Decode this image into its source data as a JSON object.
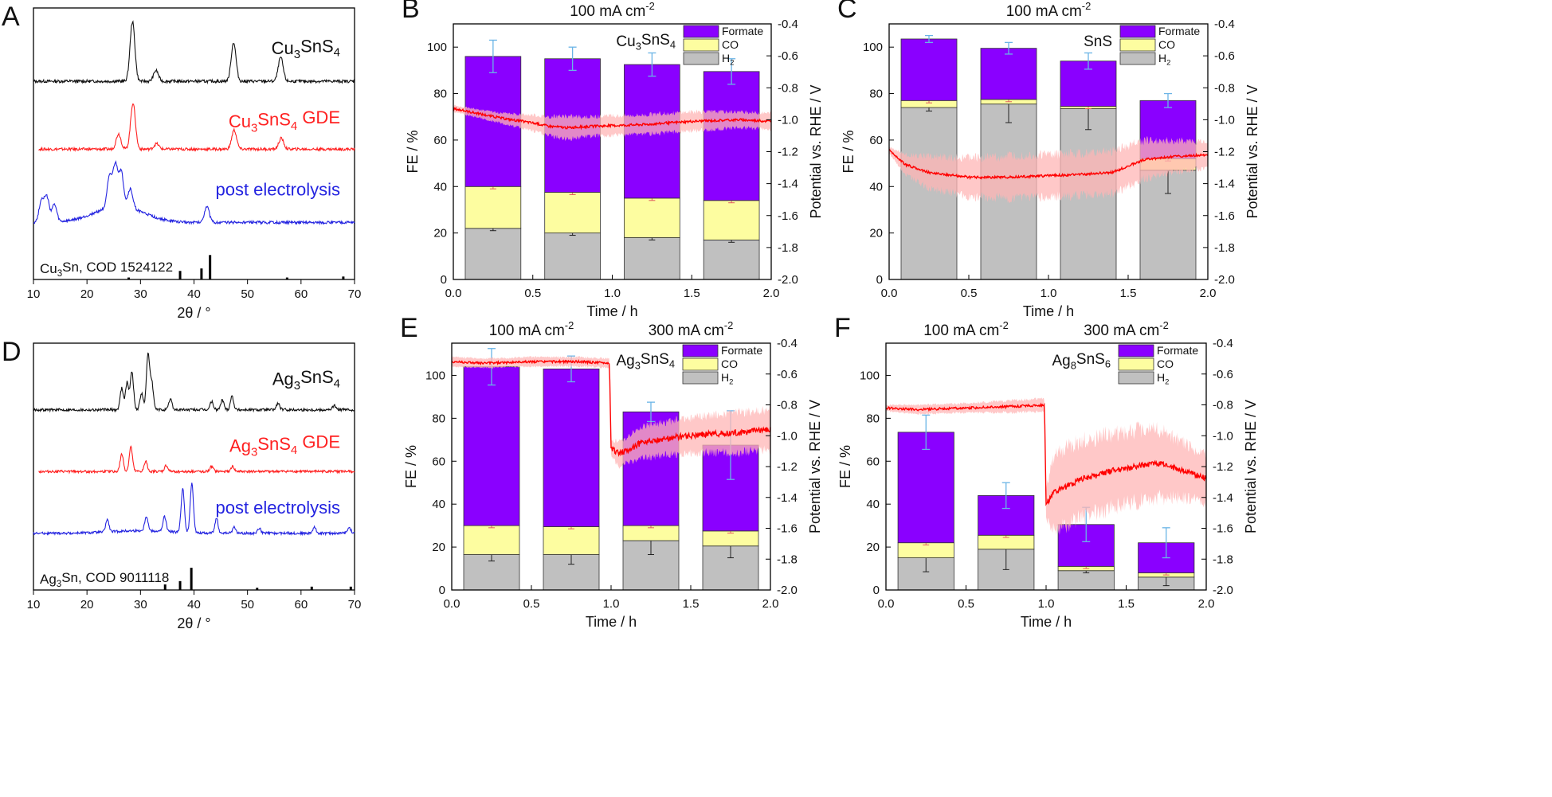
{
  "colors": {
    "formate": "#8a00ff",
    "co": "#fdfda0",
    "h2": "#c0c0c0",
    "potential": "#ff0000",
    "potential_band": "#ffb6b6",
    "fe_error": "#6ab4e6",
    "xrd_black": "#111111",
    "xrd_red": "#ff2020",
    "xrd_blue": "#2424e0"
  },
  "chart_data": [
    {
      "panel": "A",
      "type": "line",
      "xlabel": "2θ / °",
      "xlim": [
        10,
        70
      ],
      "x_ticks": [
        10,
        20,
        30,
        40,
        50,
        60,
        70
      ],
      "series": [
        {
          "label_parts": [
            [
              "Cu",
              false
            ],
            [
              "3",
              true
            ],
            [
              "SnS",
              false
            ],
            [
              "4",
              true
            ]
          ],
          "color": "#111111",
          "peaks": [
            [
              28.5,
              1.0
            ],
            [
              32.9,
              0.18
            ],
            [
              47.4,
              0.65
            ],
            [
              56.2,
              0.4
            ]
          ]
        },
        {
          "label_parts": [
            [
              "Cu",
              false
            ],
            [
              "3",
              true
            ],
            [
              "SnS",
              false
            ],
            [
              "4",
              true
            ],
            [
              " GDE",
              false
            ]
          ],
          "color": "#ff2020",
          "peaks": [
            [
              25.9,
              0.28
            ],
            [
              28.6,
              0.85
            ],
            [
              33.0,
              0.1
            ],
            [
              47.5,
              0.35
            ],
            [
              56.3,
              0.2
            ]
          ]
        },
        {
          "label_parts": [
            [
              "post electrolysis",
              false
            ]
          ],
          "color": "#2424e0",
          "peaks": [
            [
              11.5,
              0.4
            ],
            [
              12.5,
              0.45
            ],
            [
              13.9,
              0.32
            ],
            [
              24.2,
              0.55
            ],
            [
              25.3,
              0.75
            ],
            [
              26.4,
              0.62
            ],
            [
              28.1,
              0.35
            ],
            [
              42.4,
              0.3
            ]
          ]
        }
      ],
      "reference": {
        "label": "Cu3Sn, COD 1524122",
        "label_parts": [
          [
            "Cu",
            false
          ],
          [
            "3",
            true
          ],
          [
            "Sn, COD 1524122",
            false
          ]
        ],
        "sticks": [
          [
            27.8,
            0.08
          ],
          [
            37.4,
            0.35
          ],
          [
            41.4,
            0.45
          ],
          [
            43.0,
            1.0
          ],
          [
            57.4,
            0.08
          ],
          [
            67.9,
            0.12
          ]
        ]
      }
    },
    {
      "panel": "B",
      "type": "bar",
      "title_parts": [
        [
          "100 mA cm",
          false
        ],
        [
          "-2",
          true
        ]
      ],
      "sample_parts": [
        [
          "Cu",
          false
        ],
        [
          "3",
          true
        ],
        [
          "SnS",
          false
        ],
        [
          "4",
          true
        ]
      ],
      "xlabel": "Time / h",
      "ylabel": "FE / %",
      "ylabel2": "Potential vs. RHE / V",
      "xlim": [
        0,
        2
      ],
      "ylim": [
        0,
        110
      ],
      "y2lim": [
        -2.0,
        -0.4
      ],
      "x_ticks": [
        0.0,
        0.5,
        1.0,
        1.5,
        2.0
      ],
      "y_ticks": [
        0,
        20,
        40,
        60,
        80,
        100
      ],
      "y2_ticks": [
        -0.4,
        -0.6,
        -0.8,
        -1.0,
        -1.2,
        -1.4,
        -1.6,
        -1.8,
        -2.0
      ],
      "categories": [
        0.25,
        0.75,
        1.25,
        1.75
      ],
      "series": [
        {
          "name_parts": [
            [
              "H",
              false
            ],
            [
              "2",
              true
            ]
          ],
          "color": "#c0c0c0",
          "values": [
            22,
            20,
            18,
            17
          ]
        },
        {
          "name_parts": [
            [
              "CO",
              false
            ]
          ],
          "color": "#fdfda0",
          "values": [
            18,
            17.5,
            17,
            17
          ]
        },
        {
          "name_parts": [
            [
              "Formate",
              false
            ]
          ],
          "color": "#8a00ff",
          "values": [
            56,
            57.5,
            57.5,
            55.5
          ]
        }
      ],
      "total_error": [
        7,
        5,
        5,
        5.5
      ],
      "potential": {
        "points": [
          [
            0,
            -0.93
          ],
          [
            0.3,
            -0.99
          ],
          [
            0.5,
            -1.02
          ],
          [
            0.6,
            -1.04
          ],
          [
            0.72,
            -1.05
          ],
          [
            0.9,
            -1.04
          ],
          [
            1.2,
            -1.03
          ],
          [
            1.5,
            -1.01
          ],
          [
            1.8,
            -1.0
          ],
          [
            2.0,
            -1.01
          ]
        ],
        "band": [
          0.02,
          0.03,
          0.05,
          0.06,
          0.07,
          0.06,
          0.06,
          0.06,
          0.05,
          0.05
        ]
      }
    },
    {
      "panel": "C",
      "type": "bar",
      "title_parts": [
        [
          "100 mA cm",
          false
        ],
        [
          "-2",
          true
        ]
      ],
      "sample_parts": [
        [
          "SnS",
          false
        ]
      ],
      "xlabel": "Time / h",
      "ylabel": "FE / %",
      "ylabel2": "Potential vs. RHE / V",
      "xlim": [
        0,
        2
      ],
      "ylim": [
        0,
        110
      ],
      "y2lim": [
        -2.0,
        -0.4
      ],
      "x_ticks": [
        0.0,
        0.5,
        1.0,
        1.5,
        2.0
      ],
      "y_ticks": [
        0,
        20,
        40,
        60,
        80,
        100
      ],
      "y2_ticks": [
        -0.4,
        -0.6,
        -0.8,
        -1.0,
        -1.2,
        -1.4,
        -1.6,
        -1.8,
        -2.0
      ],
      "categories": [
        0.25,
        0.75,
        1.25,
        1.75
      ],
      "series": [
        {
          "name_parts": [
            [
              "H",
              false
            ],
            [
              "2",
              true
            ]
          ],
          "color": "#c0c0c0",
          "values": [
            74,
            75.5,
            73.5,
            47
          ]
        },
        {
          "name_parts": [
            [
              "CO",
              false
            ]
          ],
          "color": "#fdfda0",
          "values": [
            3,
            2,
            1,
            5
          ]
        },
        {
          "name_parts": [
            [
              "Formate",
              false
            ]
          ],
          "color": "#8a00ff",
          "values": [
            26.5,
            22,
            19.5,
            25
          ]
        }
      ],
      "total_error": [
        1.5,
        2.5,
        3.5,
        3
      ],
      "h2_error": [
        1.5,
        8,
        9,
        10
      ],
      "potential": {
        "points": [
          [
            0,
            -1.19
          ],
          [
            0.1,
            -1.28
          ],
          [
            0.25,
            -1.33
          ],
          [
            0.5,
            -1.36
          ],
          [
            0.75,
            -1.36
          ],
          [
            1.0,
            -1.35
          ],
          [
            1.25,
            -1.34
          ],
          [
            1.4,
            -1.33
          ],
          [
            1.5,
            -1.29
          ],
          [
            1.6,
            -1.25
          ],
          [
            1.8,
            -1.23
          ],
          [
            2.0,
            -1.22
          ]
        ],
        "band": [
          0.02,
          0.06,
          0.1,
          0.12,
          0.13,
          0.13,
          0.13,
          0.13,
          0.13,
          0.12,
          0.1,
          0.08
        ]
      }
    },
    {
      "panel": "D",
      "type": "line",
      "xlabel": "2θ / °",
      "xlim": [
        10,
        70
      ],
      "x_ticks": [
        10,
        20,
        30,
        40,
        50,
        60,
        70
      ],
      "series": [
        {
          "label_parts": [
            [
              "Ag",
              false
            ],
            [
              "3",
              true
            ],
            [
              "SnS",
              false
            ],
            [
              "4",
              true
            ]
          ],
          "color": "#111111",
          "peaks": [
            [
              26.5,
              0.4
            ],
            [
              27.5,
              0.5
            ],
            [
              28.4,
              0.7
            ],
            [
              30.2,
              0.3
            ],
            [
              31.4,
              1.0
            ],
            [
              32.1,
              0.5
            ],
            [
              35.6,
              0.2
            ],
            [
              43.3,
              0.15
            ],
            [
              45.3,
              0.18
            ],
            [
              47.1,
              0.25
            ],
            [
              55.7,
              0.12
            ],
            [
              66.2,
              0.08
            ]
          ]
        },
        {
          "label_parts": [
            [
              "Ag",
              false
            ],
            [
              "3",
              true
            ],
            [
              "SnS",
              false
            ],
            [
              "4",
              true
            ],
            [
              " GDE",
              false
            ]
          ],
          "color": "#ff2020",
          "peaks": [
            [
              26.5,
              0.35
            ],
            [
              28.2,
              0.5
            ],
            [
              31.0,
              0.2
            ],
            [
              34.8,
              0.12
            ],
            [
              43.3,
              0.1
            ],
            [
              47.2,
              0.1
            ]
          ]
        },
        {
          "label_parts": [
            [
              "post electrolysis",
              false
            ]
          ],
          "color": "#2424e0",
          "peaks": [
            [
              23.8,
              0.25
            ],
            [
              31.1,
              0.3
            ],
            [
              34.5,
              0.3
            ],
            [
              37.9,
              0.9
            ],
            [
              39.6,
              1.0
            ],
            [
              44.2,
              0.3
            ],
            [
              47.5,
              0.12
            ],
            [
              52.2,
              0.1
            ],
            [
              62.5,
              0.12
            ],
            [
              69.0,
              0.12
            ]
          ]
        }
      ],
      "reference": {
        "label": "Ag3Sn, COD 9011118",
        "label_parts": [
          [
            "Ag",
            false
          ],
          [
            "3",
            true
          ],
          [
            "Sn, COD 9011118",
            false
          ]
        ],
        "sticks": [
          [
            34.6,
            0.25
          ],
          [
            37.4,
            0.4
          ],
          [
            39.5,
            1.0
          ],
          [
            51.8,
            0.1
          ],
          [
            62.0,
            0.15
          ],
          [
            69.3,
            0.15
          ]
        ]
      }
    },
    {
      "panel": "E",
      "type": "bar",
      "title_parts": [
        [
          "100 mA cm",
          false
        ],
        [
          "-2",
          true
        ]
      ],
      "title2_parts": [
        [
          "300 mA cm",
          false
        ],
        [
          "-2",
          true
        ]
      ],
      "sample_parts": [
        [
          "Ag",
          false
        ],
        [
          "3",
          true
        ],
        [
          "SnS",
          false
        ],
        [
          "4",
          true
        ]
      ],
      "xlabel": "Time / h",
      "ylabel": "FE / %",
      "ylabel2": "Potential vs. RHE / V",
      "xlim": [
        0,
        2
      ],
      "ylim": [
        0,
        115
      ],
      "y2lim": [
        -2.0,
        -0.4
      ],
      "x_ticks": [
        0.0,
        0.5,
        1.0,
        1.5,
        2.0
      ],
      "y_ticks": [
        0,
        20,
        40,
        60,
        80,
        100
      ],
      "y2_ticks": [
        -0.4,
        -0.6,
        -0.8,
        -1.0,
        -1.2,
        -1.4,
        -1.6,
        -1.8,
        -2.0
      ],
      "categories": [
        0.25,
        0.75,
        1.25,
        1.75
      ],
      "series": [
        {
          "name_parts": [
            [
              "H",
              false
            ],
            [
              "2",
              true
            ]
          ],
          "color": "#c0c0c0",
          "values": [
            16.5,
            16.5,
            23,
            20.5
          ]
        },
        {
          "name_parts": [
            [
              "CO",
              false
            ]
          ],
          "color": "#fdfda0",
          "values": [
            13.5,
            13,
            7,
            7
          ]
        },
        {
          "name_parts": [
            [
              "Formate",
              false
            ]
          ],
          "color": "#8a00ff",
          "values": [
            74,
            73.5,
            53,
            40
          ]
        }
      ],
      "total_error": [
        8.5,
        6,
        4.5,
        16
      ],
      "h2_error": [
        3,
        4.5,
        6.5,
        5.5
      ],
      "potential": {
        "points": [
          [
            0,
            -0.52
          ],
          [
            0.2,
            -0.53
          ],
          [
            0.5,
            -0.52
          ],
          [
            0.8,
            -0.52
          ],
          [
            0.99,
            -0.53
          ],
          [
            1.0,
            -1.08
          ],
          [
            1.05,
            -1.12
          ],
          [
            1.2,
            -1.04
          ],
          [
            1.4,
            -1.01
          ],
          [
            1.6,
            -0.99
          ],
          [
            1.8,
            -0.98
          ],
          [
            2.0,
            -0.96
          ]
        ],
        "band": [
          0.03,
          0.03,
          0.03,
          0.03,
          0.03,
          0.05,
          0.08,
          0.1,
          0.11,
          0.12,
          0.13,
          0.13
        ]
      }
    },
    {
      "panel": "F",
      "type": "bar",
      "title_parts": [
        [
          "100 mA cm",
          false
        ],
        [
          "-2",
          true
        ]
      ],
      "title2_parts": [
        [
          "300 mA cm",
          false
        ],
        [
          "-2",
          true
        ]
      ],
      "sample_parts": [
        [
          "Ag",
          false
        ],
        [
          "8",
          true
        ],
        [
          "SnS",
          false
        ],
        [
          "6",
          true
        ]
      ],
      "xlabel": "Time / h",
      "ylabel": "FE / %",
      "ylabel2": "Potential vs. RHE / V",
      "xlim": [
        0,
        2
      ],
      "ylim": [
        0,
        115
      ],
      "y2lim": [
        -2.0,
        -0.4
      ],
      "x_ticks": [
        0.0,
        0.5,
        1.0,
        1.5,
        2.0
      ],
      "y_ticks": [
        0,
        20,
        40,
        60,
        80,
        100
      ],
      "y2_ticks": [
        -0.4,
        -0.6,
        -0.8,
        -1.0,
        -1.2,
        -1.4,
        -1.6,
        -1.8,
        -2.0
      ],
      "categories": [
        0.25,
        0.75,
        1.25,
        1.75
      ],
      "series": [
        {
          "name_parts": [
            [
              "H",
              false
            ],
            [
              "2",
              true
            ]
          ],
          "color": "#c0c0c0",
          "values": [
            15,
            19,
            9,
            6
          ]
        },
        {
          "name_parts": [
            [
              "CO",
              false
            ]
          ],
          "color": "#fdfda0",
          "values": [
            7,
            6.5,
            2,
            2
          ]
        },
        {
          "name_parts": [
            [
              "Formate",
              false
            ]
          ],
          "color": "#8a00ff",
          "values": [
            51.5,
            18.5,
            19.5,
            14
          ]
        }
      ],
      "total_error": [
        8,
        6,
        8,
        7
      ],
      "h2_error": [
        6.5,
        9.5,
        1,
        4
      ],
      "potential": {
        "points": [
          [
            0,
            -0.82
          ],
          [
            0.2,
            -0.83
          ],
          [
            0.5,
            -0.82
          ],
          [
            0.8,
            -0.81
          ],
          [
            0.99,
            -0.8
          ],
          [
            1.0,
            -1.44
          ],
          [
            1.05,
            -1.37
          ],
          [
            1.2,
            -1.29
          ],
          [
            1.4,
            -1.23
          ],
          [
            1.6,
            -1.19
          ],
          [
            1.7,
            -1.18
          ],
          [
            1.85,
            -1.22
          ],
          [
            2.0,
            -1.28
          ]
        ],
        "band": [
          0.02,
          0.03,
          0.03,
          0.04,
          0.04,
          0.1,
          0.25,
          0.25,
          0.24,
          0.23,
          0.22,
          0.18,
          0.15
        ]
      }
    }
  ]
}
